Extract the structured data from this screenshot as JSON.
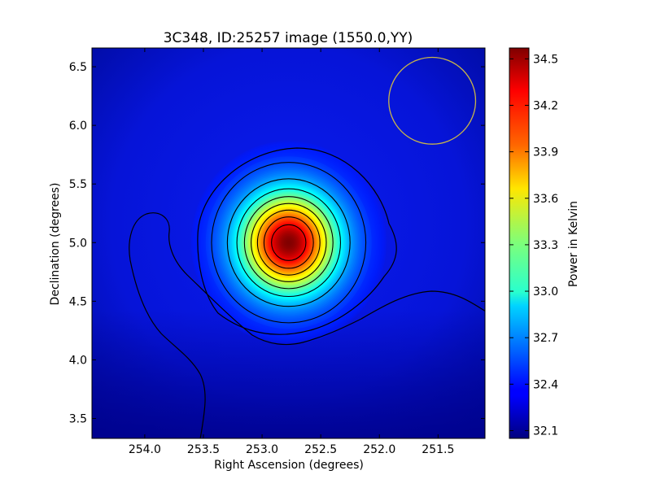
{
  "chart_data": {
    "type": "heatmap",
    "title": "3C348, ID:25257 image (1550.0,YY)",
    "xlabel": "Right Ascension (degrees)",
    "ylabel": "Declination (degrees)",
    "colorbar_label": "Power in Kelvin",
    "x_axis_inverted": true,
    "xlim": [
      254.45,
      251.1
    ],
    "ylim": [
      3.33,
      6.66
    ],
    "x_ticks": [
      254.0,
      253.5,
      253.0,
      252.5,
      252.0,
      251.5
    ],
    "x_tick_labels": [
      "254.0",
      "253.5",
      "253.0",
      "252.5",
      "252.0",
      "251.5"
    ],
    "y_ticks": [
      3.5,
      4.0,
      4.5,
      5.0,
      5.5,
      6.0,
      6.5
    ],
    "y_tick_labels": [
      "3.5",
      "4.0",
      "4.5",
      "5.0",
      "5.5",
      "6.0",
      "6.5"
    ],
    "colorbar_range": [
      32.05,
      34.57
    ],
    "colorbar_ticks": [
      32.1,
      32.4,
      32.7,
      33.0,
      33.3,
      33.6,
      33.9,
      34.2,
      34.5
    ],
    "colorbar_tick_labels": [
      "32.1",
      "32.4",
      "32.7",
      "33.0",
      "33.3",
      "33.6",
      "33.9",
      "34.2",
      "34.5"
    ],
    "colormap": "jet",
    "source": {
      "ra": 252.78,
      "dec": 5.0,
      "peak": 34.57
    },
    "beam_circle": {
      "ra": 251.55,
      "dec": 6.21,
      "radius_deg": 0.37,
      "color": "#c8b44a"
    },
    "contour_levels": [
      32.3,
      32.55,
      32.8,
      33.05,
      33.3,
      33.55,
      33.8,
      34.05,
      34.3
    ],
    "grid": false
  }
}
